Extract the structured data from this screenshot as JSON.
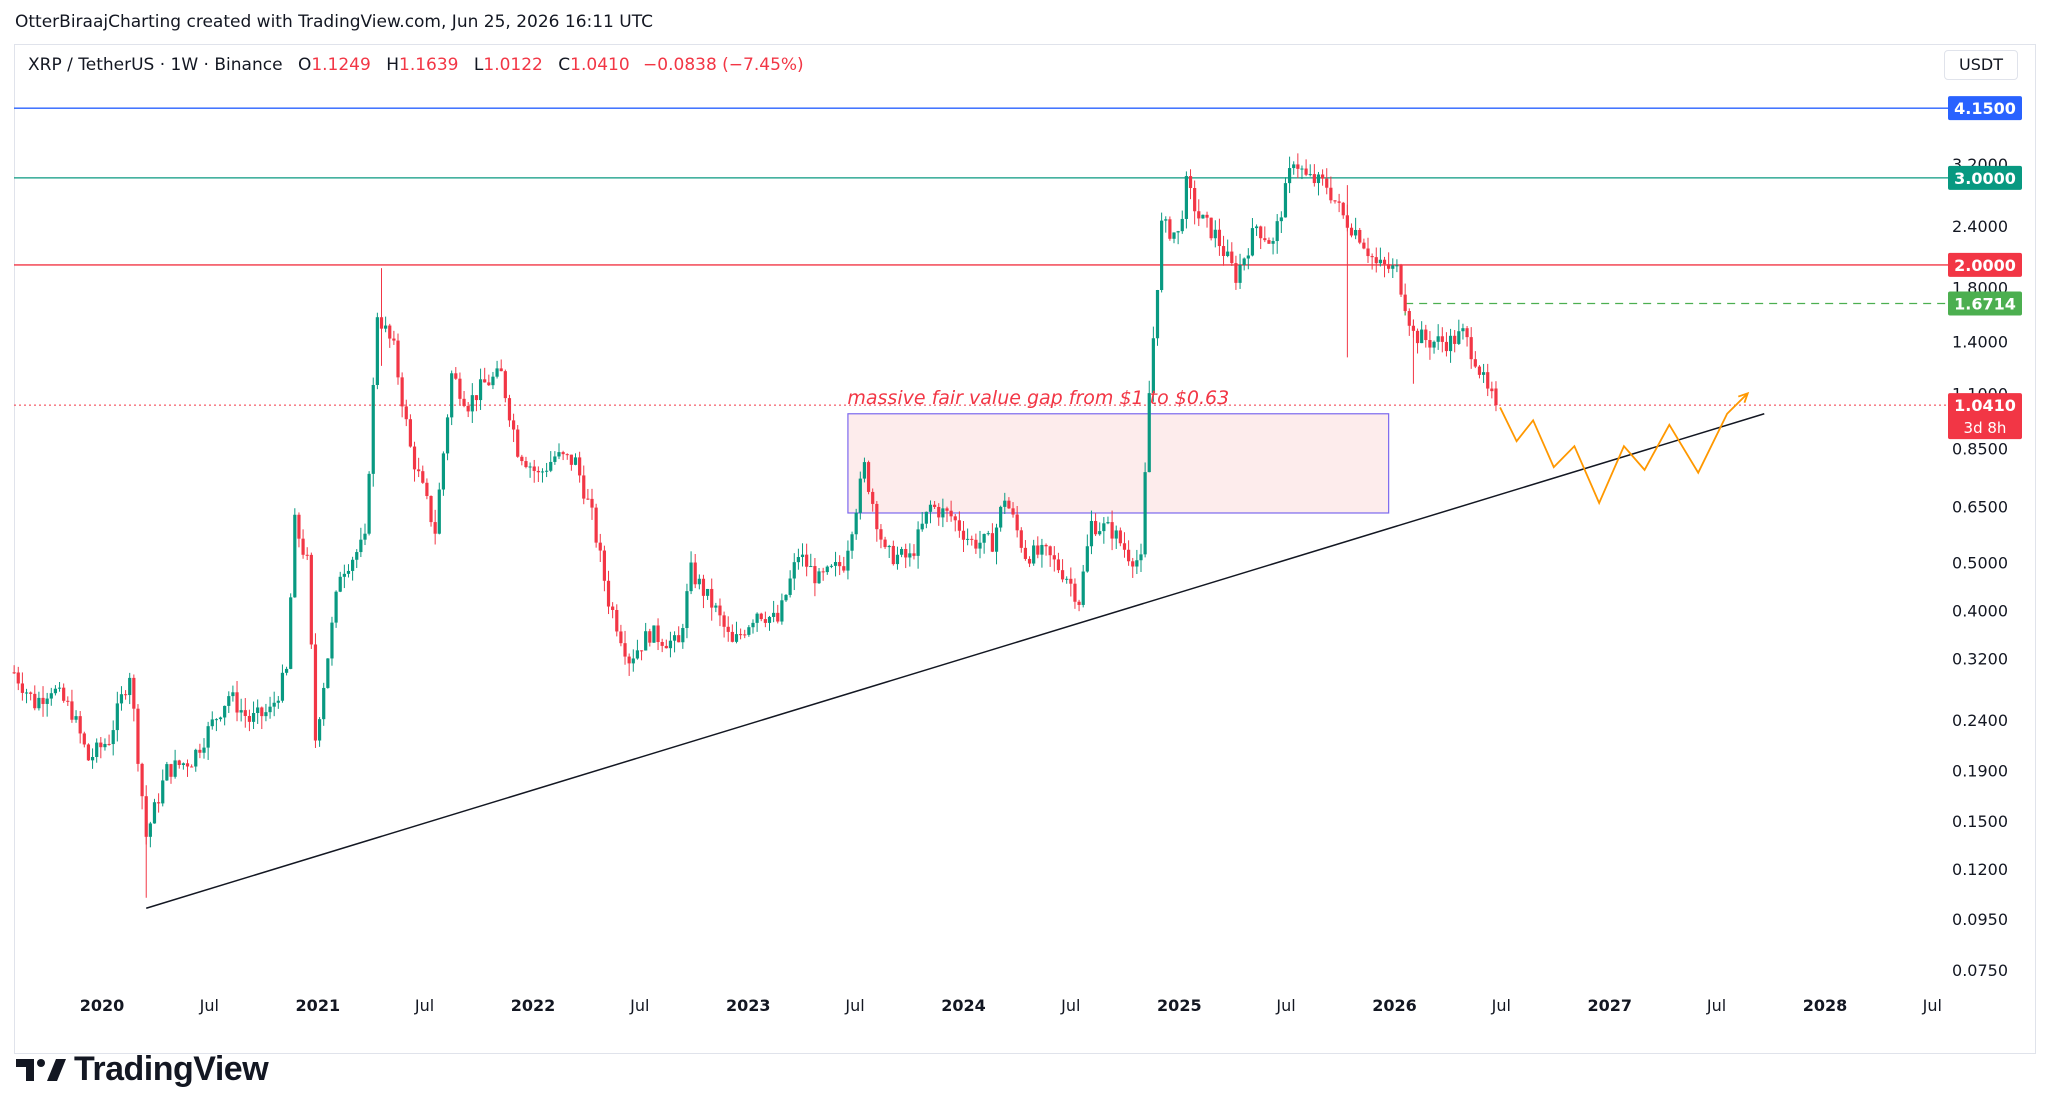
{
  "header": {
    "credit": "OtterBiraajCharting created with TradingView.com, Jun 25, 2026 16:11 UTC"
  },
  "symbol": {
    "name": "XRP / TetherUS · 1W · Binance",
    "open_label": "O",
    "open": "1.1249",
    "high_label": "H",
    "high": "1.1639",
    "low_label": "L",
    "low": "1.0122",
    "close_label": "C",
    "close": "1.0410",
    "change": "−0.0838 (−7.45%)"
  },
  "currency_button": "USDT",
  "footer": {
    "brand": "TradingView"
  },
  "colors": {
    "up": "#089981",
    "down": "#f23645",
    "blue": "#2962ff",
    "teal": "#089981",
    "red": "#f23645",
    "green_dash": "#4caf50",
    "orange": "#ff9800",
    "fvg_fill": "#fdecec",
    "fvg_border": "#7b68ee",
    "trend": "#131722",
    "price_dots": "#f23645"
  },
  "chart_data": {
    "type": "candlestick",
    "scale": "log",
    "y_ticks": [
      "3.2000",
      "2.4000",
      "1.8000",
      "1.4000",
      "1.1000",
      "0.8500",
      "0.6500",
      "0.5000",
      "0.4000",
      "0.3200",
      "0.2400",
      "0.1900",
      "0.1500",
      "0.1200",
      "0.0950",
      "0.0750"
    ],
    "y_tick_values": [
      3.2,
      2.4,
      1.8,
      1.4,
      1.1,
      0.85,
      0.65,
      0.5,
      0.4,
      0.32,
      0.24,
      0.19,
      0.15,
      0.12,
      0.095,
      0.075
    ],
    "x_ticks": [
      {
        "date": "2020-01-01",
        "label": "2020",
        "bold": true
      },
      {
        "date": "2020-07-01",
        "label": "Jul",
        "bold": false
      },
      {
        "date": "2021-01-01",
        "label": "2021",
        "bold": true
      },
      {
        "date": "2021-07-01",
        "label": "Jul",
        "bold": false
      },
      {
        "date": "2022-01-01",
        "label": "2022",
        "bold": true
      },
      {
        "date": "2022-07-01",
        "label": "Jul",
        "bold": false
      },
      {
        "date": "2023-01-01",
        "label": "2023",
        "bold": true
      },
      {
        "date": "2023-07-01",
        "label": "Jul",
        "bold": false
      },
      {
        "date": "2024-01-01",
        "label": "2024",
        "bold": true
      },
      {
        "date": "2024-07-01",
        "label": "Jul",
        "bold": false
      },
      {
        "date": "2025-01-01",
        "label": "2025",
        "bold": true
      },
      {
        "date": "2025-07-01",
        "label": "Jul",
        "bold": false
      },
      {
        "date": "2026-01-01",
        "label": "2026",
        "bold": true
      },
      {
        "date": "2026-07-01",
        "label": "Jul",
        "bold": false
      },
      {
        "date": "2027-01-01",
        "label": "2027",
        "bold": true
      },
      {
        "date": "2027-07-01",
        "label": "Jul",
        "bold": false
      },
      {
        "date": "2028-01-01",
        "label": "2028",
        "bold": true
      },
      {
        "date": "2028-07-01",
        "label": "Jul",
        "bold": false
      }
    ],
    "price_path": [
      [
        "2019-08-05",
        0.3
      ],
      [
        "2019-09-09",
        0.26
      ],
      [
        "2019-10-07",
        0.28
      ],
      [
        "2019-11-11",
        0.25
      ],
      [
        "2019-12-09",
        0.2
      ],
      [
        "2020-01-13",
        0.22
      ],
      [
        "2020-02-17",
        0.3
      ],
      [
        "2020-03-16",
        0.14
      ],
      [
        "2020-04-20",
        0.19
      ],
      [
        "2020-06-01",
        0.2
      ],
      [
        "2020-08-03",
        0.27
      ],
      [
        "2020-09-07",
        0.24
      ],
      [
        "2020-10-12",
        0.25
      ],
      [
        "2020-11-09",
        0.3
      ],
      [
        "2020-11-23",
        0.6
      ],
      [
        "2020-12-14",
        0.5
      ],
      [
        "2020-12-28",
        0.22
      ],
      [
        "2021-02-08",
        0.48
      ],
      [
        "2021-03-22",
        0.55
      ],
      [
        "2021-04-12",
        1.6
      ],
      [
        "2021-05-10",
        1.35
      ],
      [
        "2021-06-07",
        0.85
      ],
      [
        "2021-07-19",
        0.58
      ],
      [
        "2021-08-16",
        1.2
      ],
      [
        "2021-09-13",
        1.05
      ],
      [
        "2021-10-11",
        1.15
      ],
      [
        "2021-11-08",
        1.2
      ],
      [
        "2021-12-06",
        0.85
      ],
      [
        "2022-01-10",
        0.75
      ],
      [
        "2022-02-07",
        0.82
      ],
      [
        "2022-03-14",
        0.8
      ],
      [
        "2022-04-11",
        0.62
      ],
      [
        "2022-05-09",
        0.42
      ],
      [
        "2022-06-13",
        0.32
      ],
      [
        "2022-07-18",
        0.36
      ],
      [
        "2022-09-05",
        0.34
      ],
      [
        "2022-09-26",
        0.48
      ],
      [
        "2022-11-07",
        0.4
      ],
      [
        "2022-12-05",
        0.34
      ],
      [
        "2023-01-16",
        0.4
      ],
      [
        "2023-02-20",
        0.38
      ],
      [
        "2023-03-27",
        0.52
      ],
      [
        "2023-05-01",
        0.46
      ],
      [
        "2023-06-12",
        0.5
      ],
      [
        "2023-07-17",
        0.78
      ],
      [
        "2023-08-21",
        0.52
      ],
      [
        "2023-10-02",
        0.51
      ],
      [
        "2023-11-06",
        0.65
      ],
      [
        "2023-12-11",
        0.62
      ],
      [
        "2024-01-15",
        0.55
      ],
      [
        "2024-02-19",
        0.55
      ],
      [
        "2024-03-11",
        0.68
      ],
      [
        "2024-04-15",
        0.52
      ],
      [
        "2024-05-20",
        0.52
      ],
      [
        "2024-06-24",
        0.47
      ],
      [
        "2024-07-15",
        0.42
      ],
      [
        "2024-08-05",
        0.6
      ],
      [
        "2024-09-09",
        0.58
      ],
      [
        "2024-10-07",
        0.52
      ],
      [
        "2024-10-28",
        0.5
      ],
      [
        "2024-11-11",
        1.1
      ],
      [
        "2024-12-02",
        2.4
      ],
      [
        "2024-12-30",
        2.3
      ],
      [
        "2025-01-13",
        2.9
      ],
      [
        "2025-02-03",
        2.5
      ],
      [
        "2025-03-03",
        2.3
      ],
      [
        "2025-04-07",
        1.9
      ],
      [
        "2025-05-12",
        2.4
      ],
      [
        "2025-06-09",
        2.2
      ],
      [
        "2025-07-14",
        3.3
      ],
      [
        "2025-08-04",
        3.0
      ],
      [
        "2025-09-08",
        2.9
      ],
      [
        "2025-10-06",
        2.5
      ],
      [
        "2025-11-03",
        2.3
      ],
      [
        "2025-12-01",
        2.0
      ],
      [
        "2026-01-05",
        1.95
      ],
      [
        "2026-02-02",
        1.45
      ],
      [
        "2026-03-02",
        1.4
      ],
      [
        "2026-04-06",
        1.4
      ],
      [
        "2026-04-27",
        1.45
      ],
      [
        "2026-05-18",
        1.3
      ],
      [
        "2026-06-08",
        1.1
      ],
      [
        "2026-06-22",
        1.041
      ]
    ],
    "horizontal_levels": [
      {
        "price": 4.15,
        "label": "4.1500",
        "color": "#2962ff",
        "style": "solid"
      },
      {
        "price": 3.0,
        "label": "3.0000",
        "color": "#089981",
        "style": "solid"
      },
      {
        "price": 2.0,
        "label": "2.0000",
        "color": "#f23645",
        "style": "solid"
      },
      {
        "price": 1.6714,
        "label": "1.6714",
        "color": "#4caf50",
        "style": "dashed",
        "from": "2026-01-19"
      },
      {
        "price": 1.041,
        "label": "1.0410",
        "color": "#f23645",
        "style": "dotted"
      }
    ],
    "price_label_countdown": "3d 8h",
    "fair_value_gap": {
      "from": "2023-06-19",
      "to": "2025-12-22",
      "top": 1.0,
      "bottom": 0.63
    },
    "annotation": "massive fair value gap from $1 to $0.63",
    "trendline": {
      "start": [
        "2020-03-16",
        0.1
      ],
      "end": [
        "2027-09-20",
        1.0
      ]
    },
    "projection_path": [
      [
        "2026-06-29",
        1.03
      ],
      [
        "2026-07-27",
        0.88
      ],
      [
        "2026-08-24",
        0.97
      ],
      [
        "2026-09-28",
        0.78
      ],
      [
        "2026-11-02",
        0.86
      ],
      [
        "2026-12-14",
        0.66
      ],
      [
        "2027-01-25",
        0.86
      ],
      [
        "2027-03-01",
        0.77
      ],
      [
        "2027-04-12",
        0.95
      ],
      [
        "2027-05-31",
        0.76
      ],
      [
        "2027-07-19",
        1.0
      ],
      [
        "2027-08-23",
        1.1
      ]
    ]
  }
}
